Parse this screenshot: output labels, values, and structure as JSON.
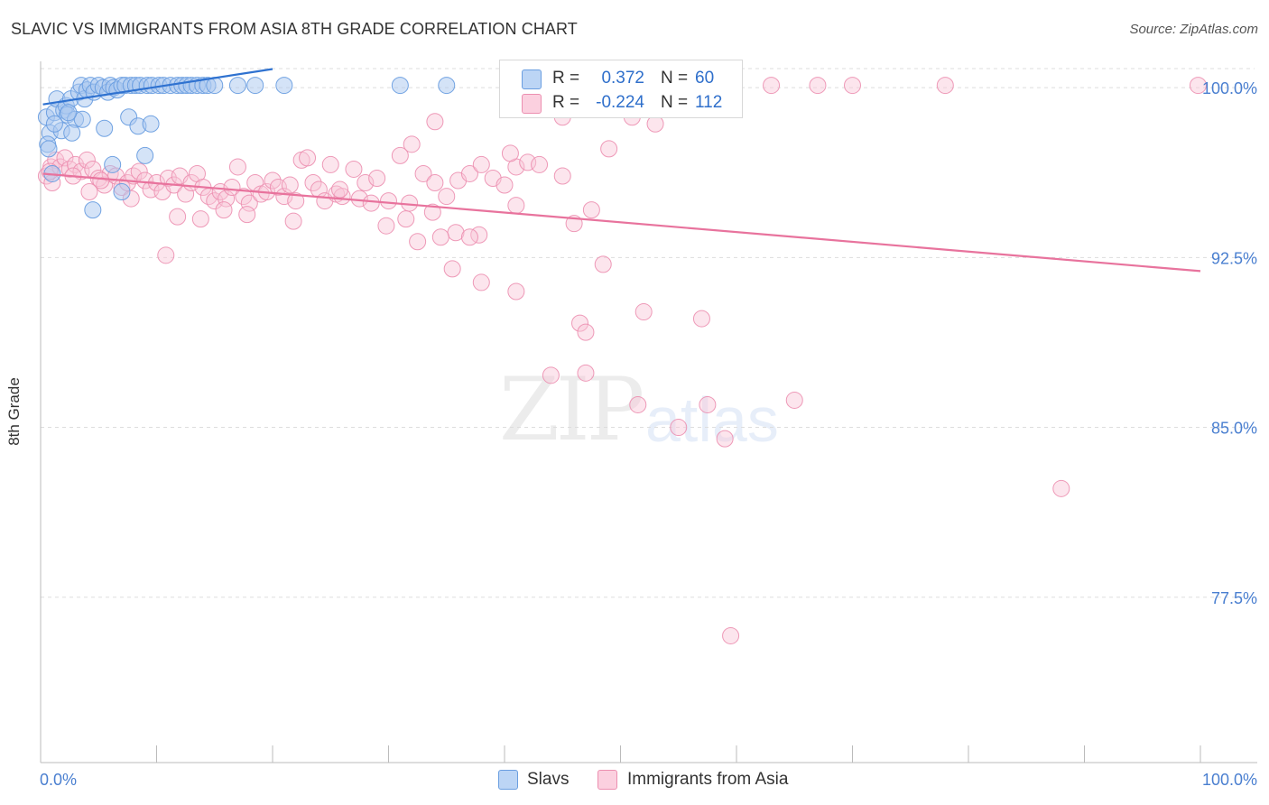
{
  "header": {
    "title": "SLAVIC VS IMMIGRANTS FROM ASIA 8TH GRADE CORRELATION CHART",
    "source": "Source: ZipAtlas.com"
  },
  "watermark": {
    "zip": "ZIP",
    "atlas": "atlas"
  },
  "legend_top": {
    "r_label": "R =",
    "n_label": "N =",
    "rows": [
      {
        "r": "0.372",
        "n": "60"
      },
      {
        "r": "-0.224",
        "n": "112"
      }
    ]
  },
  "legend_bottom": [
    "Slavs",
    "Immigrants from Asia"
  ],
  "colors": {
    "blue_fill": "#a9c8f0",
    "blue_stroke": "#6a9ee0",
    "blue_line": "#2f72d0",
    "pink_fill": "#f8c5d6",
    "pink_stroke": "#ec8fb0",
    "pink_line": "#e8739d",
    "tick_label": "#4a7fd0",
    "grid": "#dddddd"
  },
  "chart_data": {
    "type": "scatter",
    "title": "SLAVIC VS IMMIGRANTS FROM ASIA 8TH GRADE CORRELATION CHART",
    "xlabel": "",
    "ylabel": "8th Grade",
    "xlim": [
      0,
      100
    ],
    "ylim": [
      70.2,
      101.0
    ],
    "x_tick_labels": [
      "0.0%",
      "100.0%"
    ],
    "y_ticks": [
      100.0,
      92.5,
      85.0,
      77.5
    ],
    "y_tick_labels": [
      "100.0%",
      "92.5%",
      "85.0%",
      "77.5%"
    ],
    "grid": true,
    "series": [
      {
        "name": "Slavs",
        "r": 0.372,
        "n": 60,
        "trend": {
          "x0": 0.2,
          "y0": 99.26,
          "x1": 20.0,
          "y1": 100.82
        },
        "points": [
          [
            0.5,
            98.7
          ],
          [
            0.8,
            98.0
          ],
          [
            0.6,
            97.5
          ],
          [
            1.0,
            96.2
          ],
          [
            1.2,
            98.9
          ],
          [
            1.4,
            99.5
          ],
          [
            1.8,
            98.1
          ],
          [
            2.0,
            99.0
          ],
          [
            2.2,
            99.2
          ],
          [
            2.6,
            99.5
          ],
          [
            2.3,
            98.8
          ],
          [
            3.0,
            98.6
          ],
          [
            2.7,
            98.0
          ],
          [
            3.3,
            99.8
          ],
          [
            3.5,
            100.1
          ],
          [
            3.8,
            99.5
          ],
          [
            4.0,
            99.9
          ],
          [
            4.3,
            100.1
          ],
          [
            4.6,
            99.8
          ],
          [
            5.0,
            100.1
          ],
          [
            5.4,
            100.0
          ],
          [
            5.8,
            99.8
          ],
          [
            6.0,
            100.1
          ],
          [
            6.3,
            100.0
          ],
          [
            6.6,
            99.9
          ],
          [
            7.0,
            100.1
          ],
          [
            7.3,
            100.1
          ],
          [
            7.8,
            100.1
          ],
          [
            8.2,
            100.1
          ],
          [
            8.6,
            100.1
          ],
          [
            9.2,
            100.1
          ],
          [
            9.6,
            100.1
          ],
          [
            10.2,
            100.1
          ],
          [
            10.6,
            100.1
          ],
          [
            11.2,
            100.1
          ],
          [
            11.8,
            100.1
          ],
          [
            12.2,
            100.1
          ],
          [
            12.6,
            100.1
          ],
          [
            13.0,
            100.1
          ],
          [
            13.5,
            100.1
          ],
          [
            14.0,
            100.1
          ],
          [
            14.4,
            100.1
          ],
          [
            15.0,
            100.1
          ],
          [
            17.0,
            100.1
          ],
          [
            18.5,
            100.1
          ],
          [
            21.0,
            100.1
          ],
          [
            31.0,
            100.1
          ],
          [
            35.0,
            100.1
          ],
          [
            3.6,
            98.6
          ],
          [
            5.5,
            98.2
          ],
          [
            7.6,
            98.7
          ],
          [
            8.4,
            98.3
          ],
          [
            9.5,
            98.4
          ],
          [
            1.2,
            98.4
          ],
          [
            0.7,
            97.3
          ],
          [
            2.4,
            98.9
          ],
          [
            6.2,
            96.6
          ],
          [
            9.0,
            97.0
          ],
          [
            4.5,
            94.6
          ],
          [
            7.0,
            95.4
          ]
        ]
      },
      {
        "name": "Immigrants from Asia",
        "r": -0.224,
        "n": 112,
        "trend": {
          "x0": 0.2,
          "y0": 96.2,
          "x1": 100.0,
          "y1": 91.9
        },
        "points": [
          [
            0.5,
            96.1
          ],
          [
            0.9,
            96.5
          ],
          [
            1.3,
            96.8
          ],
          [
            1.7,
            96.5
          ],
          [
            2.1,
            96.9
          ],
          [
            2.5,
            96.4
          ],
          [
            3.0,
            96.6
          ],
          [
            3.5,
            96.3
          ],
          [
            4.0,
            96.8
          ],
          [
            4.5,
            96.4
          ],
          [
            5.0,
            96.0
          ],
          [
            5.5,
            95.7
          ],
          [
            6.0,
            96.2
          ],
          [
            6.5,
            96.1
          ],
          [
            7.0,
            95.6
          ],
          [
            7.5,
            95.8
          ],
          [
            8.0,
            96.1
          ],
          [
            8.5,
            96.3
          ],
          [
            9.0,
            95.9
          ],
          [
            9.5,
            95.5
          ],
          [
            10.0,
            95.8
          ],
          [
            10.5,
            95.4
          ],
          [
            11.0,
            96.0
          ],
          [
            11.5,
            95.7
          ],
          [
            12.0,
            96.1
          ],
          [
            12.5,
            95.3
          ],
          [
            13.0,
            95.8
          ],
          [
            13.5,
            96.2
          ],
          [
            14.0,
            95.6
          ],
          [
            14.5,
            95.2
          ],
          [
            15.0,
            95.0
          ],
          [
            15.5,
            95.4
          ],
          [
            16.0,
            95.1
          ],
          [
            16.5,
            95.6
          ],
          [
            17.0,
            96.5
          ],
          [
            17.5,
            95.2
          ],
          [
            18.0,
            94.9
          ],
          [
            18.5,
            95.8
          ],
          [
            19.0,
            95.3
          ],
          [
            19.5,
            95.4
          ],
          [
            20.0,
            95.9
          ],
          [
            20.5,
            95.6
          ],
          [
            21.0,
            95.2
          ],
          [
            21.5,
            95.7
          ],
          [
            22.0,
            95.0
          ],
          [
            22.5,
            96.8
          ],
          [
            23.0,
            96.9
          ],
          [
            23.5,
            95.8
          ],
          [
            24.0,
            95.5
          ],
          [
            24.5,
            95.0
          ],
          [
            25.0,
            96.6
          ],
          [
            25.5,
            95.3
          ],
          [
            26.0,
            95.2
          ],
          [
            27.0,
            96.4
          ],
          [
            27.5,
            95.1
          ],
          [
            28.0,
            95.8
          ],
          [
            28.5,
            94.9
          ],
          [
            29.0,
            96.0
          ],
          [
            30.0,
            95.0
          ],
          [
            31.0,
            97.0
          ],
          [
            32.0,
            97.5
          ],
          [
            33.0,
            96.2
          ],
          [
            34.0,
            95.8
          ],
          [
            35.0,
            95.2
          ],
          [
            36.0,
            95.9
          ],
          [
            37.0,
            96.2
          ],
          [
            38.0,
            96.6
          ],
          [
            39.0,
            96.0
          ],
          [
            40.0,
            95.7
          ],
          [
            41.0,
            96.5
          ],
          [
            42.0,
            96.7
          ],
          [
            43.0,
            96.6
          ],
          [
            45.0,
            96.1
          ],
          [
            46.0,
            94.0
          ],
          [
            47.5,
            94.6
          ],
          [
            1.0,
            95.8
          ],
          [
            0.8,
            96.3
          ],
          [
            2.8,
            96.1
          ],
          [
            4.2,
            95.4
          ],
          [
            5.2,
            95.9
          ],
          [
            7.8,
            95.1
          ],
          [
            11.8,
            94.3
          ],
          [
            13.8,
            94.2
          ],
          [
            15.8,
            94.6
          ],
          [
            17.8,
            94.4
          ],
          [
            21.8,
            94.1
          ],
          [
            25.8,
            95.5
          ],
          [
            29.8,
            93.9
          ],
          [
            31.8,
            94.9
          ],
          [
            33.8,
            94.5
          ],
          [
            35.8,
            93.6
          ],
          [
            37.8,
            93.5
          ],
          [
            10.8,
            92.6
          ],
          [
            31.5,
            94.2
          ],
          [
            32.5,
            93.2
          ],
          [
            34.5,
            93.4
          ],
          [
            35.5,
            92.0
          ],
          [
            37.0,
            93.4
          ],
          [
            38.0,
            91.4
          ],
          [
            41.0,
            91.0
          ],
          [
            46.5,
            89.6
          ],
          [
            47.0,
            89.2
          ],
          [
            48.5,
            92.2
          ],
          [
            52.0,
            90.1
          ],
          [
            53.0,
            98.4
          ],
          [
            51.0,
            98.7
          ],
          [
            54.0,
            100.1
          ],
          [
            55.0,
            100.1
          ],
          [
            63.0,
            100.1
          ],
          [
            67.0,
            100.1
          ],
          [
            70.0,
            100.1
          ],
          [
            78.0,
            100.1
          ]
        ],
        "extra_points": [
          [
            34.0,
            98.5
          ],
          [
            40.5,
            97.1
          ],
          [
            49.0,
            97.3
          ],
          [
            99.8,
            100.1
          ],
          [
            57.0,
            89.8
          ],
          [
            47.0,
            87.4
          ],
          [
            44.0,
            87.3
          ],
          [
            51.5,
            86.0
          ],
          [
            57.5,
            86.0
          ],
          [
            55.0,
            85.0
          ],
          [
            59.0,
            84.5
          ],
          [
            65.0,
            86.2
          ],
          [
            88.0,
            82.3
          ],
          [
            59.5,
            75.8
          ],
          [
            45.0,
            98.7
          ],
          [
            41.0,
            94.8
          ]
        ]
      }
    ]
  }
}
